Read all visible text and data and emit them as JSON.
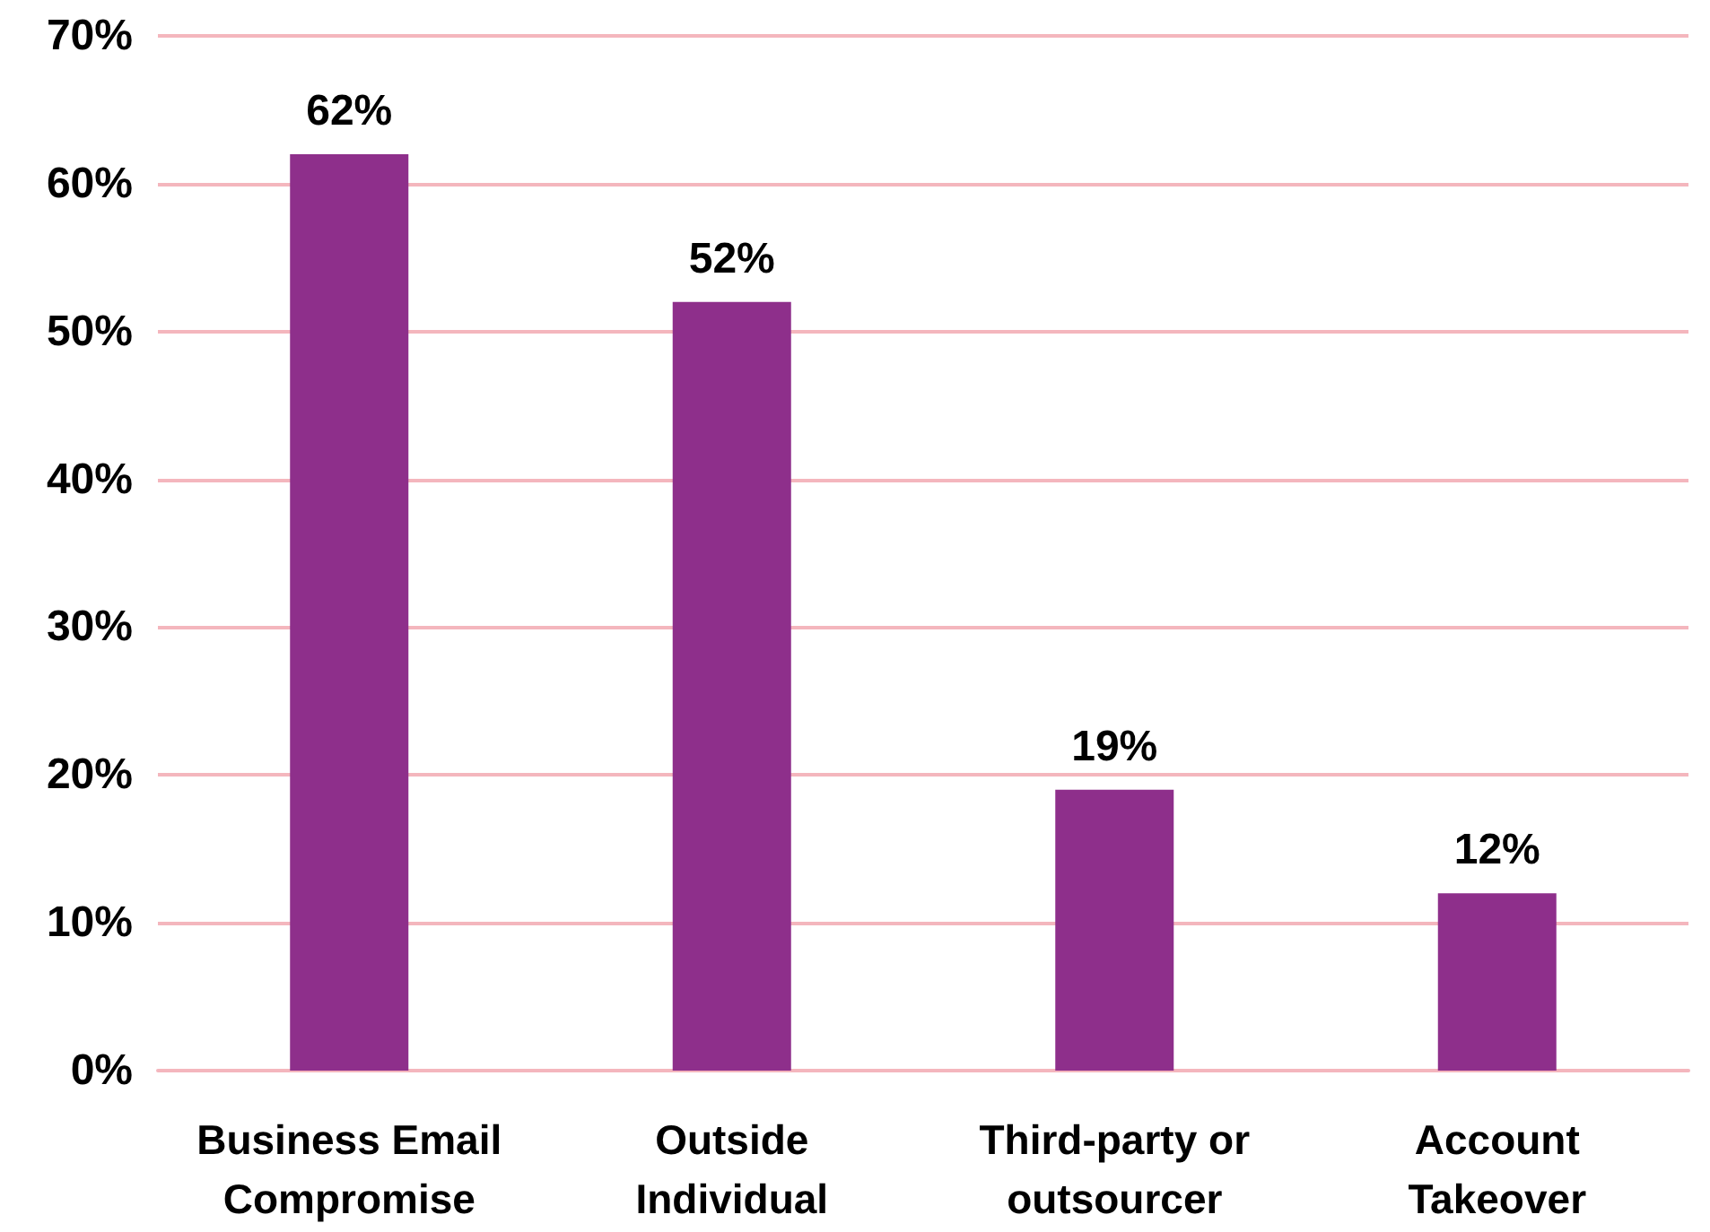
{
  "chart_data": {
    "type": "bar",
    "categories": [
      "Business Email\nCompromise",
      "Outside\nIndividual",
      "Third-party or\noutsourcer",
      "Account\nTakeover"
    ],
    "values": [
      62,
      52,
      19,
      12
    ],
    "color": "#8e2f8b",
    "value_labels": [
      "62%",
      "52%",
      "19%",
      "12%"
    ],
    "ylim": [
      0,
      70
    ],
    "yticks": [
      {
        "value": 0,
        "label": "0%"
      },
      {
        "value": 10,
        "label": "10%"
      },
      {
        "value": 20,
        "label": "20%"
      },
      {
        "value": 30,
        "label": "30%"
      },
      {
        "value": 40,
        "label": "40%"
      },
      {
        "value": 50,
        "label": "50%"
      },
      {
        "value": 60,
        "label": "60%"
      },
      {
        "value": 70,
        "label": "70%"
      }
    ],
    "grid": "y"
  }
}
